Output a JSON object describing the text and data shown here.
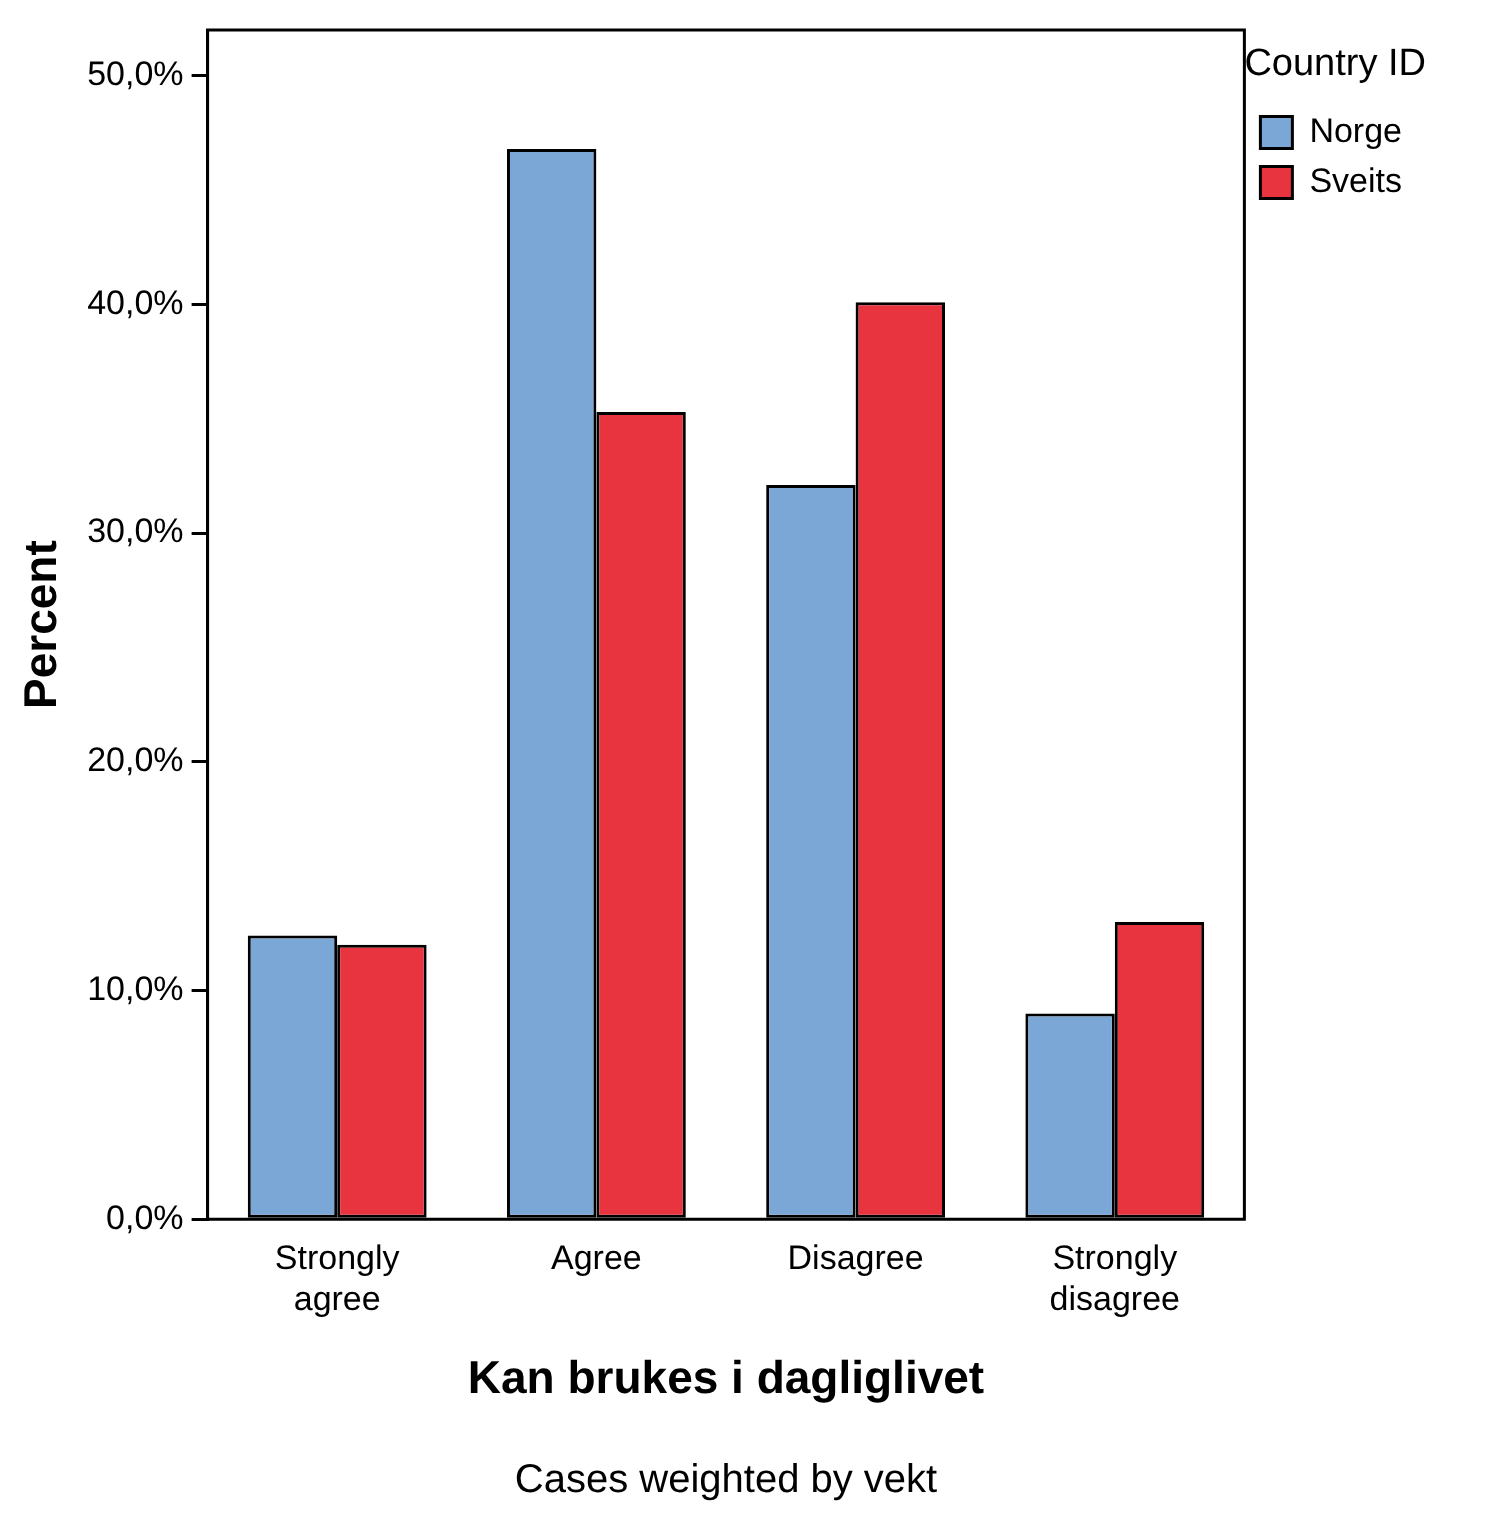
{
  "chart_data": {
    "type": "bar",
    "xlabel": "Kan brukes i dagliglivet",
    "ylabel": "Percent",
    "legend_title": "Country ID",
    "categories": [
      "Strongly agree",
      "Agree",
      "Disagree",
      "Strongly disagree"
    ],
    "series": [
      {
        "name": "Norge",
        "color": "#7ba7d6",
        "values": [
          12.4,
          46.8,
          32.1,
          9.0
        ]
      },
      {
        "name": "Sveits",
        "color": "#e8343f",
        "values": [
          12.0,
          35.3,
          40.1,
          13.0
        ]
      }
    ],
    "ylim": [
      0,
      52
    ],
    "yticks": [
      {
        "value": 0,
        "label": "0,0%"
      },
      {
        "value": 10,
        "label": "10,0%"
      },
      {
        "value": 20,
        "label": "20,0%"
      },
      {
        "value": 30,
        "label": "30,0%"
      },
      {
        "value": 40,
        "label": "40,0%"
      },
      {
        "value": 50,
        "label": "50,0%"
      }
    ],
    "grid": false,
    "legend": "top right",
    "annotations": [
      "Cases weighted by vekt"
    ]
  }
}
